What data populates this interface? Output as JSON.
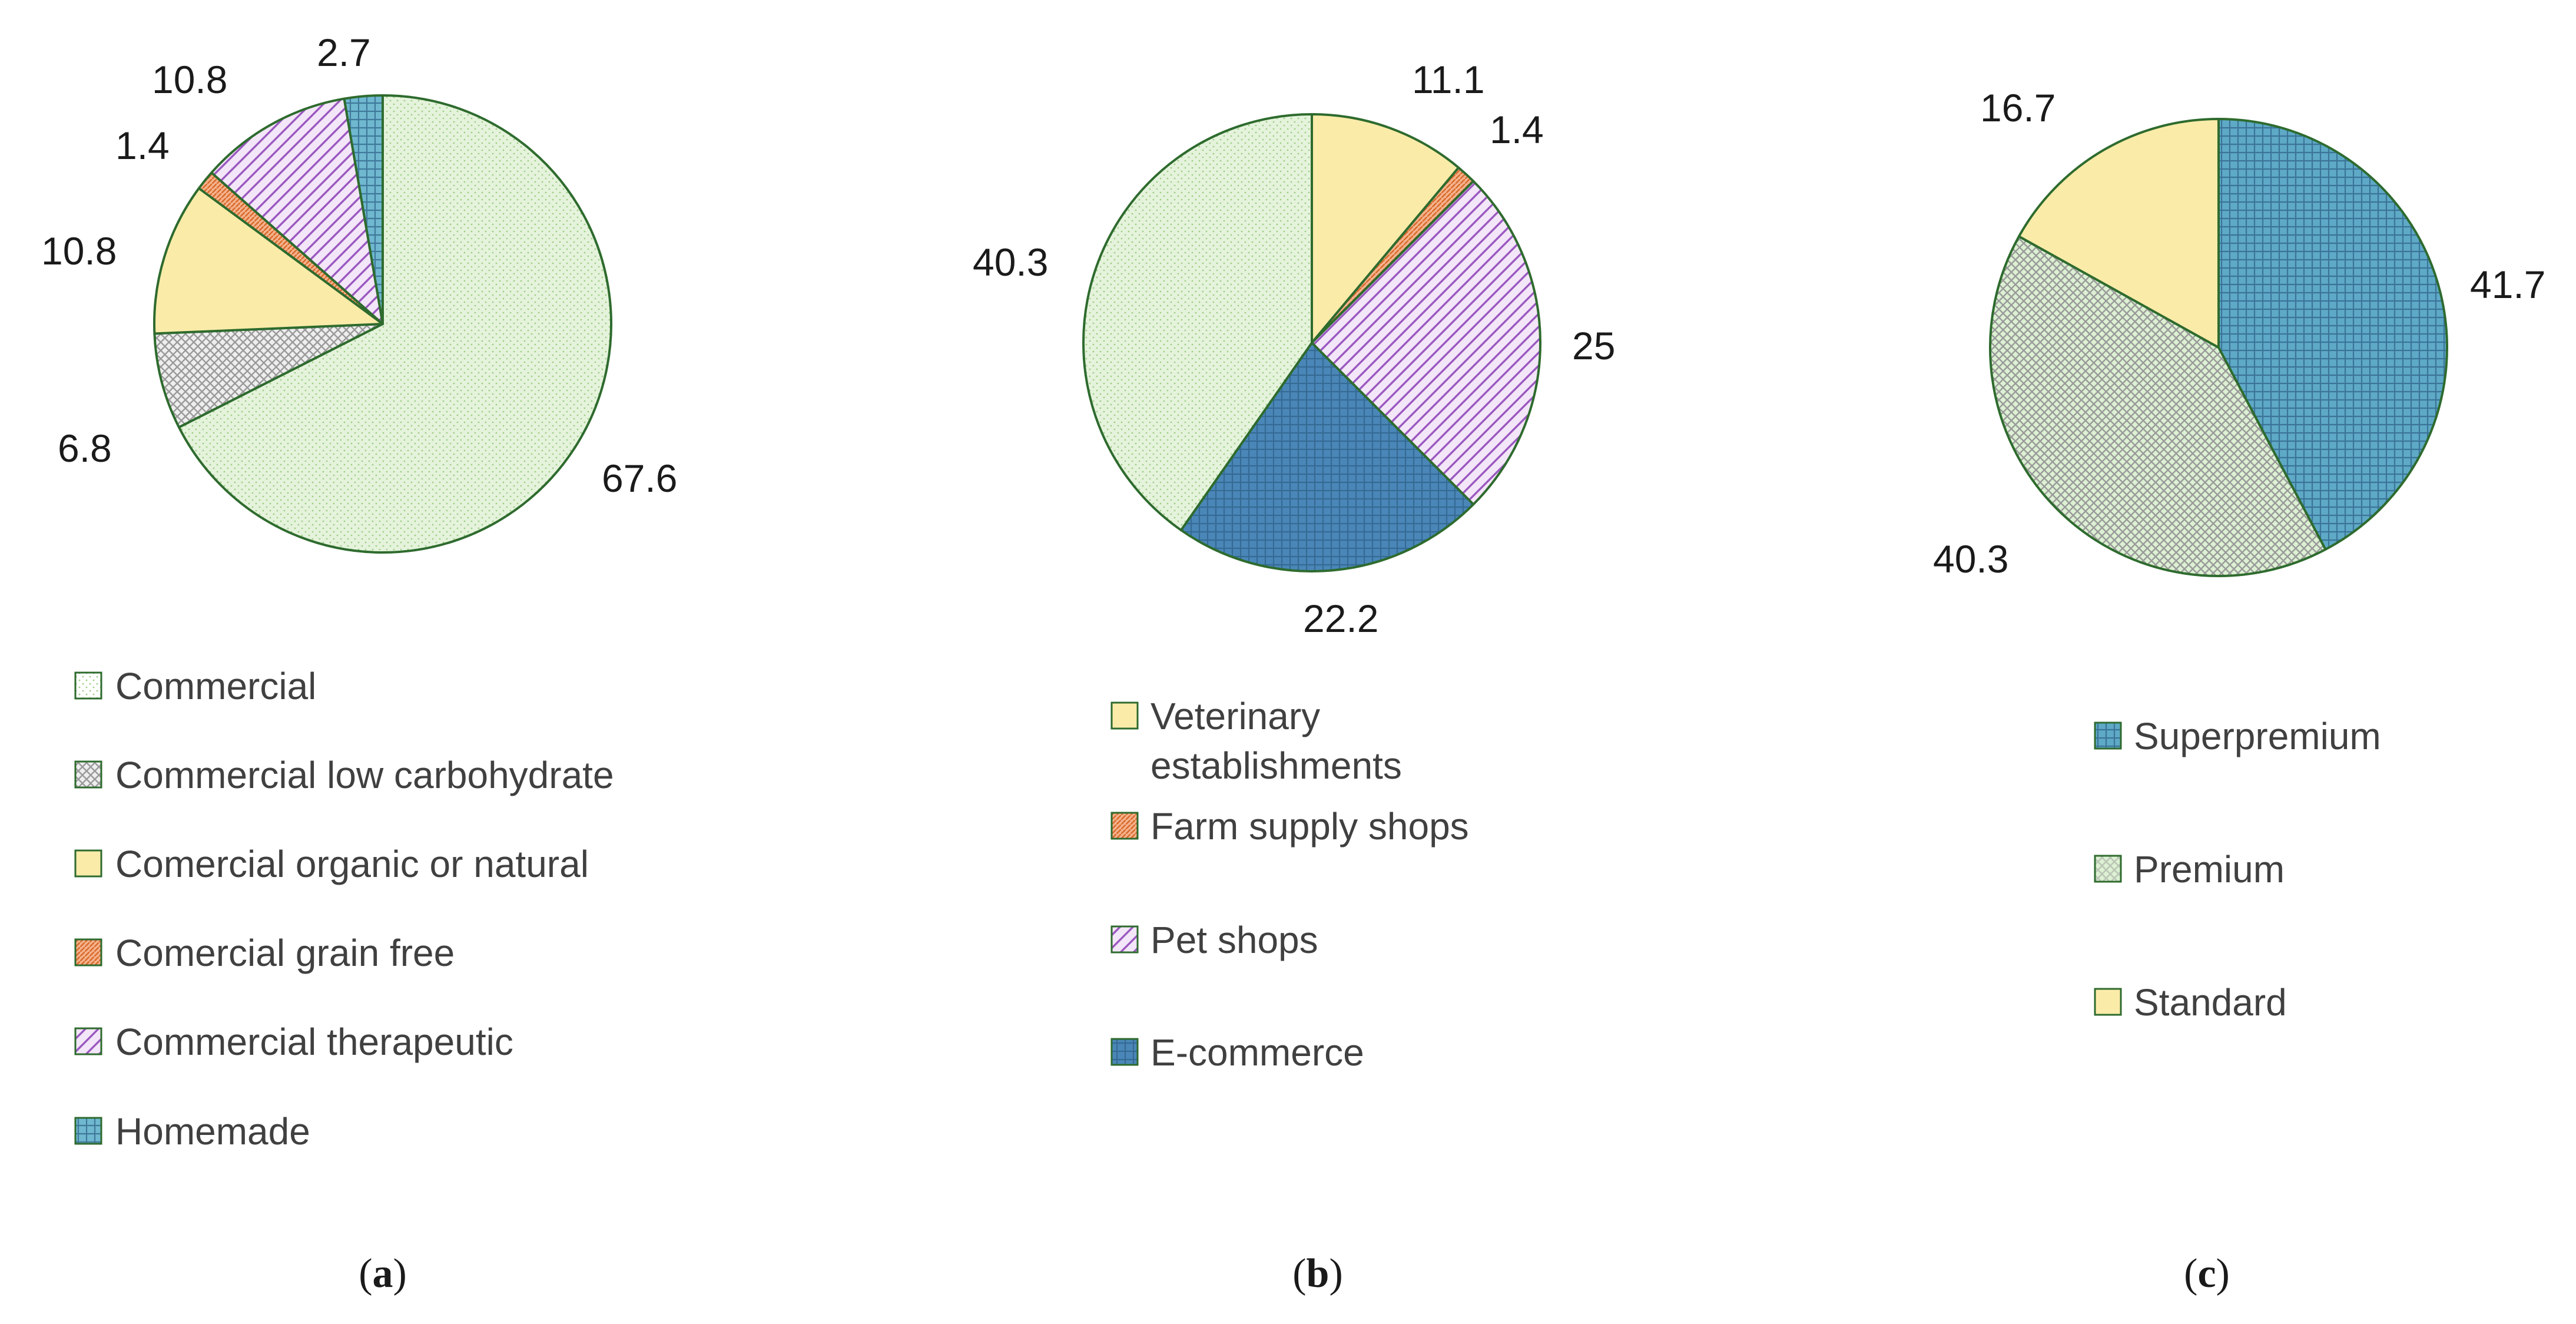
{
  "chart_data": [
    {
      "type": "pie",
      "caption": "a",
      "slices": [
        {
          "label": "Commercial",
          "value": 67.6,
          "display": "67.6",
          "color": "#e5f3dc",
          "pattern": "dots"
        },
        {
          "label": "Commercial low carbohydrate",
          "value": 6.8,
          "display": "6.8",
          "color": "#eeeeee",
          "pattern": "crosshatch"
        },
        {
          "label": "Comercial organic or natural",
          "value": 10.8,
          "display": "10.8",
          "color": "#fbeba9",
          "pattern": "plain"
        },
        {
          "label": "Comercial grain free",
          "value": 1.4,
          "display": "1.4",
          "color": "#f5b28d",
          "pattern": "dense"
        },
        {
          "label": "Commercial therapeutic",
          "value": 10.8,
          "display": "10.8",
          "color": "#f3e6f8",
          "pattern": "diag"
        },
        {
          "label": "Homemade",
          "value": 2.7,
          "display": "2.7",
          "color": "#6fb8cf",
          "pattern": "grid"
        }
      ]
    },
    {
      "type": "pie",
      "caption": "b",
      "slices": [
        {
          "label": "Veterinary establishments",
          "legend_lines": [
            "Veterinary",
            "establishments"
          ],
          "value": 11.1,
          "display": "11.1",
          "color": "#fbeba9",
          "pattern": "plain"
        },
        {
          "label": "Farm supply shops",
          "value": 1.4,
          "display": "1.4",
          "color": "#f5b28d",
          "pattern": "dense"
        },
        {
          "label": "Pet shops",
          "value": 25,
          "display": "25",
          "color": "#f3e6f8",
          "pattern": "diag"
        },
        {
          "label": "E-commerce",
          "value": 22.2,
          "display": "22.2",
          "color": "#4a87b8",
          "pattern": "grid"
        },
        {
          "label": "",
          "value": 40.3,
          "display": "40.3",
          "color": "#e5f3dc",
          "pattern": "dots"
        }
      ]
    },
    {
      "type": "pie",
      "caption": "c",
      "slices": [
        {
          "label": "Superpremium",
          "value": 41.7,
          "display": "41.7",
          "color": "#5ea9c6",
          "pattern": "grid"
        },
        {
          "label": "Premium",
          "value": 40.3,
          "display": "40.3",
          "color": "#dcf0d2",
          "pattern": "crosshatch"
        },
        {
          "label": "Standard",
          "value": 16.7,
          "display": "16.7",
          "color": "#fbeba9",
          "pattern": "plain"
        }
      ]
    }
  ]
}
